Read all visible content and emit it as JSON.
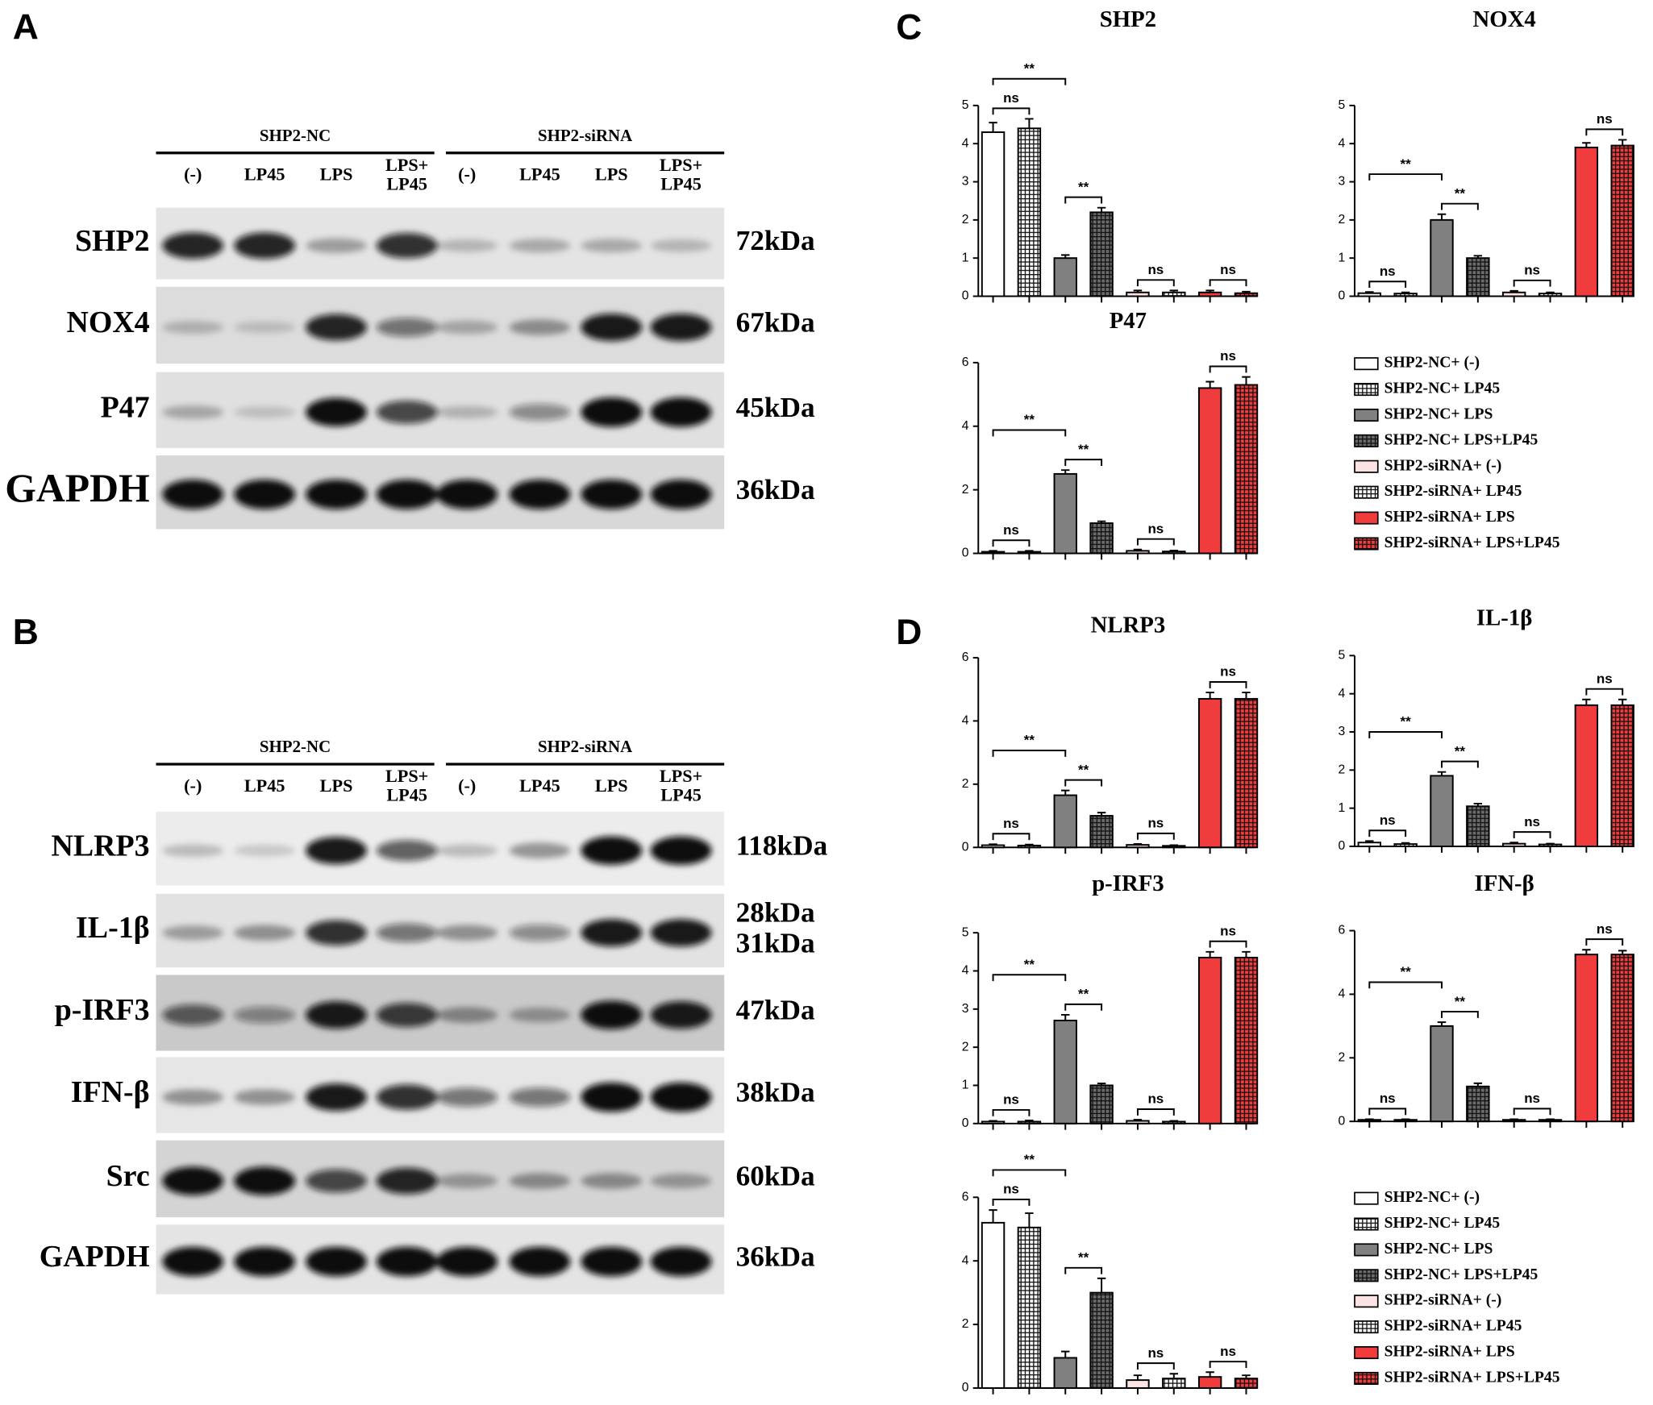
{
  "panel_labels": [
    "A",
    "B",
    "C",
    "D"
  ],
  "blots": [
    {
      "groups": [
        "SHP2-NC",
        "SHP2-siRNA"
      ],
      "lanes": [
        [
          "(-)"
        ],
        [
          "LP45"
        ],
        [
          "LPS"
        ],
        [
          "LPS+",
          "LP45"
        ],
        [
          "(-)"
        ],
        [
          "LP45"
        ],
        [
          "LPS"
        ],
        [
          "LPS+",
          "LP45"
        ]
      ],
      "rows": [
        {
          "protein": "SHP2",
          "size": [
            "72kDa"
          ]
        },
        {
          "protein": "NOX4",
          "size": [
            "67kDa"
          ]
        },
        {
          "protein": "P47",
          "size": [
            "45kDa"
          ]
        },
        {
          "protein": "GAPDH",
          "size": [
            "36kDa"
          ]
        }
      ]
    },
    {
      "groups": [
        "SHP2-NC",
        "SHP2-siRNA"
      ],
      "lanes": [
        [
          "(-)"
        ],
        [
          "LP45"
        ],
        [
          "LPS"
        ],
        [
          "LPS+",
          "LP45"
        ],
        [
          "(-)"
        ],
        [
          "LP45"
        ],
        [
          "LPS"
        ],
        [
          "LPS+",
          "LP45"
        ]
      ],
      "rows": [
        {
          "protein": "NLRP3",
          "size": [
            "118kDa"
          ]
        },
        {
          "protein": "IL-1β",
          "size": [
            "28kDa",
            "31kDa"
          ]
        },
        {
          "protein": "p-IRF3",
          "size": [
            "47kDa"
          ]
        },
        {
          "protein": "IFN-β",
          "size": [
            "38kDa"
          ]
        },
        {
          "protein": "Src",
          "size": [
            "60kDa"
          ]
        },
        {
          "protein": "GAPDH",
          "size": [
            "36kDa"
          ]
        }
      ]
    }
  ],
  "groups": [
    {
      "name": "SHP2-NC+ (-)",
      "color": "#ffffff",
      "pattern": "none"
    },
    {
      "name": "SHP2-NC+ LP45",
      "color": "#ffffff",
      "pattern": "grid"
    },
    {
      "name": "SHP2-NC+ LPS",
      "color": "#808080",
      "pattern": "none"
    },
    {
      "name": "SHP2-NC+ LPS+LP45",
      "color": "#6a6a6a",
      "pattern": "grid"
    },
    {
      "name": "SHP2-siRNA+ (-)",
      "color": "#fbe3e3",
      "pattern": "none"
    },
    {
      "name": "SHP2-siRNA+ LP45",
      "color": "#ffffff",
      "pattern": "grid"
    },
    {
      "name": "SHP2-siRNA+ LPS",
      "color": "#f03c3c",
      "pattern": "none"
    },
    {
      "name": "SHP2-siRNA+ LPS+LP45",
      "color": "#f03c3c",
      "pattern": "grid"
    }
  ],
  "chart_data": [
    {
      "type": "bar",
      "title": "SHP2",
      "values": [
        4.3,
        4.4,
        1.0,
        2.2,
        0.1,
        0.1,
        0.1,
        0.08
      ],
      "errors": [
        0.25,
        0.25,
        0.08,
        0.12,
        0.05,
        0.05,
        0.05,
        0.04
      ],
      "ylim": [
        0,
        5
      ],
      "yticks": [
        0,
        1,
        2,
        3,
        4,
        5
      ],
      "annotations": [
        {
          "from": 0,
          "to": 1,
          "label": "ns"
        },
        {
          "from": 2,
          "to": 3,
          "label": "**"
        },
        {
          "from": 4,
          "to": 5,
          "label": "ns"
        },
        {
          "from": 6,
          "to": 7,
          "label": "ns"
        },
        {
          "from": 0,
          "to": 2,
          "label": "**"
        }
      ]
    },
    {
      "type": "bar",
      "title": "NOX4",
      "values": [
        0.08,
        0.07,
        2.0,
        1.0,
        0.1,
        0.07,
        3.9,
        3.95
      ],
      "errors": [
        0.03,
        0.03,
        0.15,
        0.06,
        0.04,
        0.03,
        0.12,
        0.15
      ],
      "ylim": [
        0,
        5
      ],
      "yticks": [
        0,
        1,
        2,
        3,
        4,
        5
      ],
      "annotations": [
        {
          "from": 0,
          "to": 1,
          "label": "ns"
        },
        {
          "from": 2,
          "to": 3,
          "label": "**"
        },
        {
          "from": 4,
          "to": 5,
          "label": "ns"
        },
        {
          "from": 6,
          "to": 7,
          "label": "ns"
        },
        {
          "from": 0,
          "to": 2,
          "label": "**"
        }
      ]
    },
    {
      "type": "bar",
      "title": "P47",
      "values": [
        0.05,
        0.05,
        2.5,
        0.95,
        0.08,
        0.06,
        5.2,
        5.3
      ],
      "errors": [
        0.03,
        0.03,
        0.12,
        0.06,
        0.04,
        0.03,
        0.2,
        0.25
      ],
      "ylim": [
        0,
        6
      ],
      "yticks": [
        0,
        2,
        4,
        6
      ],
      "annotations": [
        {
          "from": 0,
          "to": 1,
          "label": "ns"
        },
        {
          "from": 2,
          "to": 3,
          "label": "**"
        },
        {
          "from": 4,
          "to": 5,
          "label": "ns"
        },
        {
          "from": 6,
          "to": 7,
          "label": "ns"
        },
        {
          "from": 0,
          "to": 2,
          "label": "**"
        }
      ]
    },
    {
      "type": "bar",
      "title": "NLRP3",
      "values": [
        0.07,
        0.06,
        1.65,
        1.0,
        0.08,
        0.05,
        4.7,
        4.7
      ],
      "errors": [
        0.03,
        0.03,
        0.15,
        0.1,
        0.03,
        0.02,
        0.2,
        0.2
      ],
      "ylim": [
        0,
        6
      ],
      "yticks": [
        0,
        2,
        4,
        6
      ],
      "annotations": [
        {
          "from": 0,
          "to": 1,
          "label": "ns"
        },
        {
          "from": 2,
          "to": 3,
          "label": "**"
        },
        {
          "from": 4,
          "to": 5,
          "label": "ns"
        },
        {
          "from": 6,
          "to": 7,
          "label": "ns"
        },
        {
          "from": 0,
          "to": 2,
          "label": "**"
        }
      ]
    },
    {
      "type": "bar",
      "title": "IL-1β",
      "values": [
        0.1,
        0.06,
        1.85,
        1.05,
        0.07,
        0.05,
        3.7,
        3.7
      ],
      "errors": [
        0.04,
        0.03,
        0.1,
        0.07,
        0.03,
        0.02,
        0.15,
        0.15
      ],
      "ylim": [
        0,
        5
      ],
      "yticks": [
        0,
        1,
        2,
        3,
        4,
        5
      ],
      "annotations": [
        {
          "from": 0,
          "to": 1,
          "label": "ns"
        },
        {
          "from": 2,
          "to": 3,
          "label": "**"
        },
        {
          "from": 4,
          "to": 5,
          "label": "ns"
        },
        {
          "from": 6,
          "to": 7,
          "label": "ns"
        },
        {
          "from": 0,
          "to": 2,
          "label": "**"
        }
      ]
    },
    {
      "type": "bar",
      "title": "p-IRF3",
      "values": [
        0.05,
        0.05,
        2.7,
        1.0,
        0.07,
        0.05,
        4.35,
        4.35
      ],
      "errors": [
        0.02,
        0.03,
        0.15,
        0.05,
        0.03,
        0.02,
        0.15,
        0.15
      ],
      "ylim": [
        0,
        5
      ],
      "yticks": [
        0,
        1,
        2,
        3,
        4,
        5
      ],
      "annotations": [
        {
          "from": 0,
          "to": 1,
          "label": "ns"
        },
        {
          "from": 2,
          "to": 3,
          "label": "**"
        },
        {
          "from": 4,
          "to": 5,
          "label": "ns"
        },
        {
          "from": 6,
          "to": 7,
          "label": "ns"
        },
        {
          "from": 0,
          "to": 2,
          "label": "**"
        }
      ]
    },
    {
      "type": "bar",
      "title": "IFN-β",
      "values": [
        0.05,
        0.05,
        3.0,
        1.1,
        0.05,
        0.05,
        5.25,
        5.25
      ],
      "errors": [
        0.02,
        0.02,
        0.12,
        0.1,
        0.02,
        0.02,
        0.15,
        0.12
      ],
      "ylim": [
        0,
        6
      ],
      "yticks": [
        0,
        2,
        4,
        6
      ],
      "annotations": [
        {
          "from": 0,
          "to": 1,
          "label": "ns"
        },
        {
          "from": 2,
          "to": 3,
          "label": "**"
        },
        {
          "from": 4,
          "to": 5,
          "label": "ns"
        },
        {
          "from": 6,
          "to": 7,
          "label": "ns"
        },
        {
          "from": 0,
          "to": 2,
          "label": "**"
        }
      ]
    },
    {
      "type": "bar",
      "values": [
        5.2,
        5.05,
        0.95,
        3.0,
        0.25,
        0.3,
        0.35,
        0.3
      ],
      "errors": [
        0.4,
        0.45,
        0.2,
        0.45,
        0.15,
        0.15,
        0.15,
        0.1
      ],
      "ylim": [
        0,
        6
      ],
      "yticks": [
        0,
        2,
        4,
        6
      ],
      "annotations": [
        {
          "from": 0,
          "to": 1,
          "label": "ns"
        },
        {
          "from": 2,
          "to": 3,
          "label": "**"
        },
        {
          "from": 4,
          "to": 5,
          "label": "ns"
        },
        {
          "from": 6,
          "to": 7,
          "label": "ns"
        },
        {
          "from": 0,
          "to": 2,
          "label": "**"
        }
      ]
    }
  ]
}
